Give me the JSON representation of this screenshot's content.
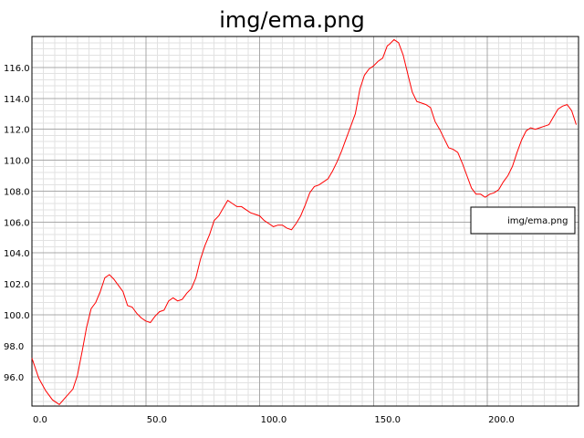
{
  "chart_data": {
    "type": "line",
    "title": "img/ema.png",
    "xlabel": "",
    "ylabel": "",
    "xlim": [
      0,
      240
    ],
    "ylim": [
      94.1,
      118
    ],
    "x_ticks": [
      0,
      50,
      100,
      150,
      200
    ],
    "x_tick_labels": [
      "0.0",
      "50.0",
      "100.0",
      "150.0",
      "200.0"
    ],
    "y_ticks": [
      96,
      98,
      100,
      102,
      104,
      106,
      108,
      110,
      112,
      114,
      116
    ],
    "y_tick_labels": [
      "96.0",
      "98.0",
      "100.0",
      "102.0",
      "104.0",
      "106.0",
      "108.0",
      "110.0",
      "112.0",
      "114.0",
      "116.0"
    ],
    "grid": true,
    "legend_position": "right",
    "series": [
      {
        "name": "img/ema.png",
        "color": "#ff0000",
        "x": [
          0,
          3,
          6,
          9,
          12,
          15,
          18,
          20,
          22,
          24,
          26,
          28,
          30,
          32,
          34,
          36,
          38,
          40,
          42,
          44,
          46,
          48,
          50,
          52,
          54,
          56,
          58,
          60,
          62,
          64,
          66,
          68,
          70,
          72,
          74,
          76,
          78,
          80,
          82,
          84,
          86,
          88,
          90,
          92,
          94,
          96,
          98,
          100,
          102,
          104,
          106,
          108,
          110,
          112,
          114,
          116,
          118,
          120,
          122,
          124,
          126,
          128,
          130,
          132,
          134,
          136,
          138,
          140,
          142,
          144,
          146,
          148,
          150,
          152,
          154,
          156,
          157,
          159,
          161,
          163,
          165,
          167,
          169,
          171,
          173,
          175,
          177,
          179,
          181,
          183,
          185,
          187,
          189,
          191,
          193,
          195,
          197,
          199,
          201,
          203,
          205,
          207,
          209,
          211,
          213,
          215,
          217,
          219,
          221,
          223,
          225,
          227,
          229,
          231,
          233,
          235,
          237,
          239
        ],
        "y": [
          97.2,
          95.9,
          95.1,
          94.5,
          94.2,
          94.7,
          95.2,
          96.1,
          97.6,
          99.2,
          100.4,
          100.8,
          101.5,
          102.4,
          102.6,
          102.3,
          101.9,
          101.5,
          100.6,
          100.5,
          100.1,
          99.8,
          99.6,
          99.5,
          99.9,
          100.2,
          100.3,
          100.9,
          101.1,
          100.9,
          101.0,
          101.4,
          101.7,
          102.4,
          103.6,
          104.5,
          105.2,
          106.1,
          106.4,
          106.9,
          107.4,
          107.2,
          107.0,
          107.0,
          106.8,
          106.6,
          106.5,
          106.4,
          106.1,
          105.9,
          105.7,
          105.8,
          105.8,
          105.6,
          105.5,
          105.9,
          106.4,
          107.1,
          107.9,
          108.3,
          108.4,
          108.6,
          108.8,
          109.3,
          109.9,
          110.6,
          111.4,
          112.2,
          113.0,
          114.6,
          115.5,
          115.9,
          116.1,
          116.4,
          116.6,
          117.4,
          117.5,
          117.8,
          117.6,
          116.8,
          115.6,
          114.4,
          113.8,
          113.7,
          113.6,
          113.4,
          112.5,
          112.0,
          111.4,
          110.8,
          110.7,
          110.5,
          109.8,
          109.0,
          108.2,
          107.8,
          107.8,
          107.6,
          107.8,
          107.9,
          108.1,
          108.6,
          109.0,
          109.6,
          110.5,
          111.3,
          111.9,
          112.1,
          112.0,
          112.1,
          112.2,
          112.3,
          112.8,
          113.3,
          113.5,
          113.6,
          113.2,
          112.3
        ]
      }
    ]
  }
}
